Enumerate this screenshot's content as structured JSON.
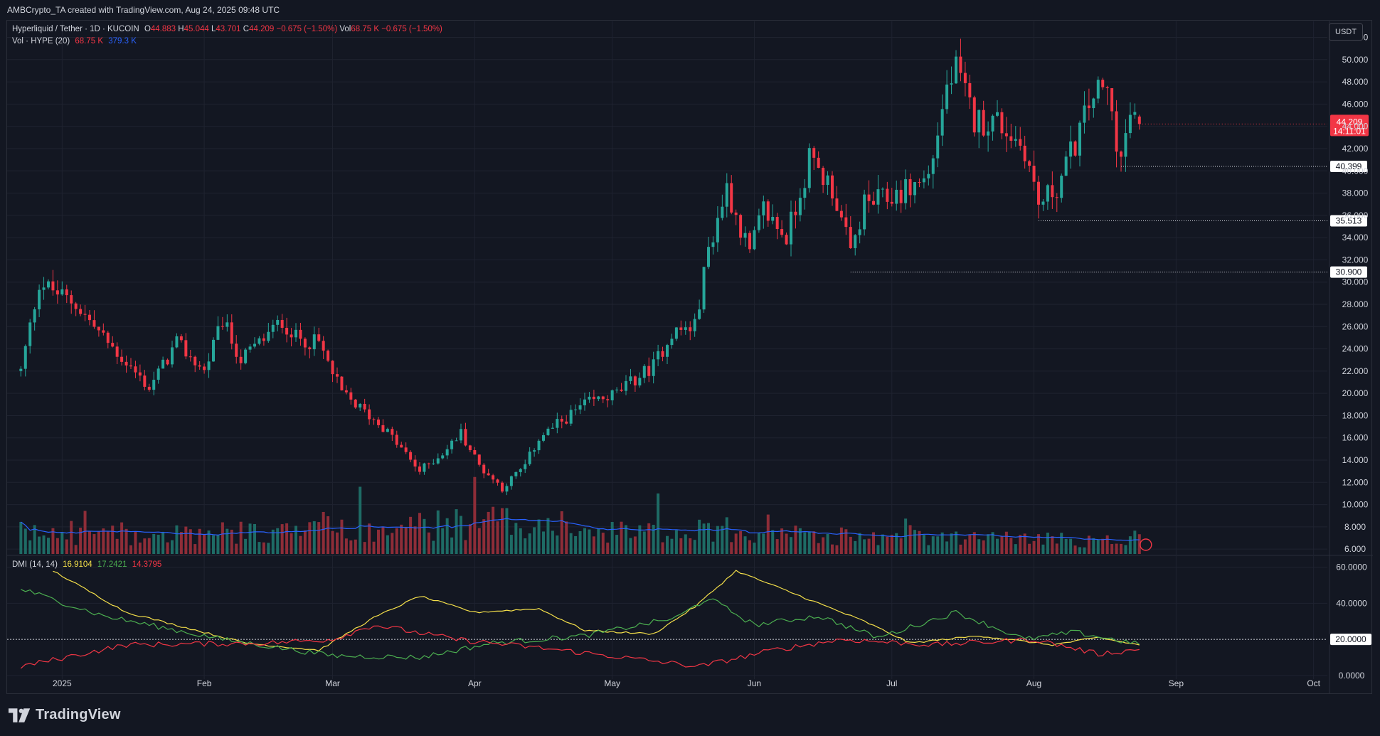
{
  "header": {
    "attribution": "AMBCrypto_TA created with TradingView.com, Aug 24, 2025 09:48 UTC"
  },
  "legend": {
    "symbol": "Hyperliquid / Tether · 1D · KUCOIN",
    "o_label": "O",
    "o_value": "44.883",
    "h_label": "H",
    "h_value": "45.044",
    "l_label": "L",
    "l_value": "43.701",
    "c_label": "C",
    "c_value": "44.209",
    "change": "−0.675 (−1.50%)",
    "vol_label": "Vol",
    "vol_value": "68.75 K",
    "vol_change": "−0.675 (−1.50%)",
    "vol_indicator": "Vol · HYPE (20)",
    "vol_current": "68.75 K",
    "vol_ma": "379.3 K",
    "dmi_label": "DMI (14, 14)",
    "dmi_adx": "16.9104",
    "dmi_plus": "17.2421",
    "dmi_minus": "14.3795"
  },
  "currency_badge": "USDT",
  "logo_text": "TradingView",
  "colors": {
    "background": "#131722",
    "up": "#26a69a",
    "down": "#f23645",
    "vol_up": "#1e6b65",
    "vol_down": "#8e2d38",
    "vol_ma": "#2962ff",
    "adx": "#f5e04a",
    "di_plus": "#4caf50",
    "di_minus": "#f23645",
    "grid": "#1f2330",
    "text": "#d1d4dc"
  },
  "chart_data": [
    {
      "type": "candlestick",
      "title": "Hyperliquid / Tether · 1D · KUCOIN",
      "y_ticks": [
        "52.000",
        "50.000",
        "48.000",
        "46.000",
        "44.000",
        "42.000",
        "40.000",
        "38.000",
        "36.000",
        "34.000",
        "32.000",
        "30.000",
        "28.000",
        "26.000",
        "24.000",
        "22.000",
        "20.000",
        "18.000",
        "16.000",
        "14.000",
        "12.000",
        "10.000",
        "8.000",
        "6.000"
      ],
      "ylim": [
        5.5,
        52.8
      ],
      "x_labels": [
        "2025",
        "Feb",
        "Mar",
        "Apr",
        "May",
        "Jun",
        "Jul",
        "Aug",
        "Sep",
        "Oct"
      ],
      "grid": true,
      "current_price": {
        "label": "44.209",
        "countdown": "14:11:01"
      },
      "horizontal_levels": [
        {
          "label": "40.399",
          "value": 40.399,
          "from": "2025-08-20"
        },
        {
          "label": "35.513",
          "value": 35.513,
          "from": "2025-08-02"
        },
        {
          "label": "30.900",
          "value": 30.9,
          "from": "2025-06-22"
        }
      ],
      "price_anchors": [
        {
          "date": "2024-12-23",
          "price": 22.0
        },
        {
          "date": "2024-12-27",
          "price": 30.0
        },
        {
          "date": "2025-01-04",
          "price": 28.0
        },
        {
          "date": "2025-01-10",
          "price": 25.0
        },
        {
          "date": "2025-01-20",
          "price": 20.5
        },
        {
          "date": "2025-01-26",
          "price": 24.5
        },
        {
          "date": "2025-02-01",
          "price": 22.0
        },
        {
          "date": "2025-02-05",
          "price": 26.5
        },
        {
          "date": "2025-02-09",
          "price": 23.0
        },
        {
          "date": "2025-02-18",
          "price": 26.5
        },
        {
          "date": "2025-02-21",
          "price": 25.0
        },
        {
          "date": "2025-02-26",
          "price": 24.5
        },
        {
          "date": "2025-03-03",
          "price": 20.0
        },
        {
          "date": "2025-03-12",
          "price": 17.0
        },
        {
          "date": "2025-03-20",
          "price": 13.0
        },
        {
          "date": "2025-03-26",
          "price": 15.0
        },
        {
          "date": "2025-03-29",
          "price": 16.5
        },
        {
          "date": "2025-04-02",
          "price": 13.5
        },
        {
          "date": "2025-04-07",
          "price": 11.5
        },
        {
          "date": "2025-04-12",
          "price": 13.5
        },
        {
          "date": "2025-04-15",
          "price": 16.0
        },
        {
          "date": "2025-04-25",
          "price": 19.0
        },
        {
          "date": "2025-05-02",
          "price": 20.0
        },
        {
          "date": "2025-05-10",
          "price": 22.5
        },
        {
          "date": "2025-05-14",
          "price": 25.5
        },
        {
          "date": "2025-05-19",
          "price": 26.0
        },
        {
          "date": "2025-05-22",
          "price": 33.0
        },
        {
          "date": "2025-05-26",
          "price": 38.5
        },
        {
          "date": "2025-05-31",
          "price": 32.5
        },
        {
          "date": "2025-06-03",
          "price": 36.5
        },
        {
          "date": "2025-06-08",
          "price": 34.0
        },
        {
          "date": "2025-06-13",
          "price": 41.0
        },
        {
          "date": "2025-06-18",
          "price": 38.5
        },
        {
          "date": "2025-06-22",
          "price": 32.5
        },
        {
          "date": "2025-06-25",
          "price": 37.0
        },
        {
          "date": "2025-06-30",
          "price": 37.5
        },
        {
          "date": "2025-07-05",
          "price": 38.5
        },
        {
          "date": "2025-07-09",
          "price": 39.5
        },
        {
          "date": "2025-07-13",
          "price": 47.5
        },
        {
          "date": "2025-07-15",
          "price": 49.0
        },
        {
          "date": "2025-07-19",
          "price": 44.5
        },
        {
          "date": "2025-07-24",
          "price": 44.5
        },
        {
          "date": "2025-07-30",
          "price": 42.0
        },
        {
          "date": "2025-08-02",
          "price": 37.0
        },
        {
          "date": "2025-08-06",
          "price": 38.5
        },
        {
          "date": "2025-08-10",
          "price": 42.5
        },
        {
          "date": "2025-08-14",
          "price": 47.0
        },
        {
          "date": "2025-08-17",
          "price": 47.0
        },
        {
          "date": "2025-08-20",
          "price": 41.0
        },
        {
          "date": "2025-08-22",
          "price": 45.0
        },
        {
          "date": "2025-08-24",
          "price": 44.209
        }
      ]
    },
    {
      "type": "bar",
      "title": "Vol · HYPE (20)",
      "ma_period": 20,
      "volume_anchors": [
        {
          "date": "2024-12-23",
          "value": 2.3
        },
        {
          "date": "2025-01-15",
          "value": 2.1
        },
        {
          "date": "2025-02-10",
          "value": 2.4
        },
        {
          "date": "2025-03-05",
          "value": 2.8
        },
        {
          "date": "2025-03-28",
          "value": 3.3
        },
        {
          "date": "2025-04-10",
          "value": 3.8
        },
        {
          "date": "2025-05-01",
          "value": 2.4
        },
        {
          "date": "2025-05-25",
          "value": 2.9
        },
        {
          "date": "2025-06-20",
          "value": 1.9
        },
        {
          "date": "2025-07-15",
          "value": 1.8
        },
        {
          "date": "2025-08-24",
          "value": 1.5
        }
      ]
    },
    {
      "type": "line",
      "title": "DMI (14, 14)",
      "y_ticks": [
        "60.0000",
        "40.0000",
        "0.0000"
      ],
      "ylim": [
        -2,
        63
      ],
      "reference_line": {
        "label": "20.0000",
        "value": 20
      },
      "series": [
        {
          "name": "ADX",
          "color": "#f5e04a",
          "anchors": [
            {
              "date": "2024-12-30",
              "value": 58
            },
            {
              "date": "2025-01-15",
              "value": 35
            },
            {
              "date": "2025-02-10",
              "value": 18
            },
            {
              "date": "2025-02-26",
              "value": 14
            },
            {
              "date": "2025-03-10",
              "value": 32
            },
            {
              "date": "2025-03-20",
              "value": 44
            },
            {
              "date": "2025-04-01",
              "value": 35
            },
            {
              "date": "2025-04-15",
              "value": 37
            },
            {
              "date": "2025-04-25",
              "value": 25
            },
            {
              "date": "2025-05-10",
              "value": 23
            },
            {
              "date": "2025-05-19",
              "value": 38
            },
            {
              "date": "2025-05-28",
              "value": 58
            },
            {
              "date": "2025-06-10",
              "value": 45
            },
            {
              "date": "2025-06-25",
              "value": 30
            },
            {
              "date": "2025-07-05",
              "value": 18
            },
            {
              "date": "2025-07-20",
              "value": 22
            },
            {
              "date": "2025-08-05",
              "value": 17
            },
            {
              "date": "2025-08-15",
              "value": 21
            },
            {
              "date": "2025-08-24",
              "value": 16.9104
            }
          ]
        },
        {
          "name": "+DI",
          "color": "#4caf50",
          "anchors": [
            {
              "date": "2024-12-23",
              "value": 48
            },
            {
              "date": "2025-01-10",
              "value": 33
            },
            {
              "date": "2025-02-05",
              "value": 20
            },
            {
              "date": "2025-03-01",
              "value": 11
            },
            {
              "date": "2025-03-20",
              "value": 10
            },
            {
              "date": "2025-04-05",
              "value": 18
            },
            {
              "date": "2025-04-25",
              "value": 22
            },
            {
              "date": "2025-05-15",
              "value": 32
            },
            {
              "date": "2025-05-22",
              "value": 43
            },
            {
              "date": "2025-06-01",
              "value": 28
            },
            {
              "date": "2025-06-15",
              "value": 33
            },
            {
              "date": "2025-06-28",
              "value": 21
            },
            {
              "date": "2025-07-15",
              "value": 35
            },
            {
              "date": "2025-07-30",
              "value": 20
            },
            {
              "date": "2025-08-10",
              "value": 24
            },
            {
              "date": "2025-08-24",
              "value": 17.2421
            }
          ]
        },
        {
          "name": "−DI",
          "color": "#f23645",
          "anchors": [
            {
              "date": "2024-12-23",
              "value": 5
            },
            {
              "date": "2025-01-15",
              "value": 17
            },
            {
              "date": "2025-02-15",
              "value": 18
            },
            {
              "date": "2025-03-01",
              "value": 20
            },
            {
              "date": "2025-03-10",
              "value": 28
            },
            {
              "date": "2025-03-28",
              "value": 20
            },
            {
              "date": "2025-04-20",
              "value": 14
            },
            {
              "date": "2025-05-20",
              "value": 5
            },
            {
              "date": "2025-06-05",
              "value": 14
            },
            {
              "date": "2025-06-20",
              "value": 20
            },
            {
              "date": "2025-07-10",
              "value": 17
            },
            {
              "date": "2025-08-01",
              "value": 20
            },
            {
              "date": "2025-08-15",
              "value": 12
            },
            {
              "date": "2025-08-24",
              "value": 14.3795
            }
          ]
        }
      ]
    }
  ]
}
